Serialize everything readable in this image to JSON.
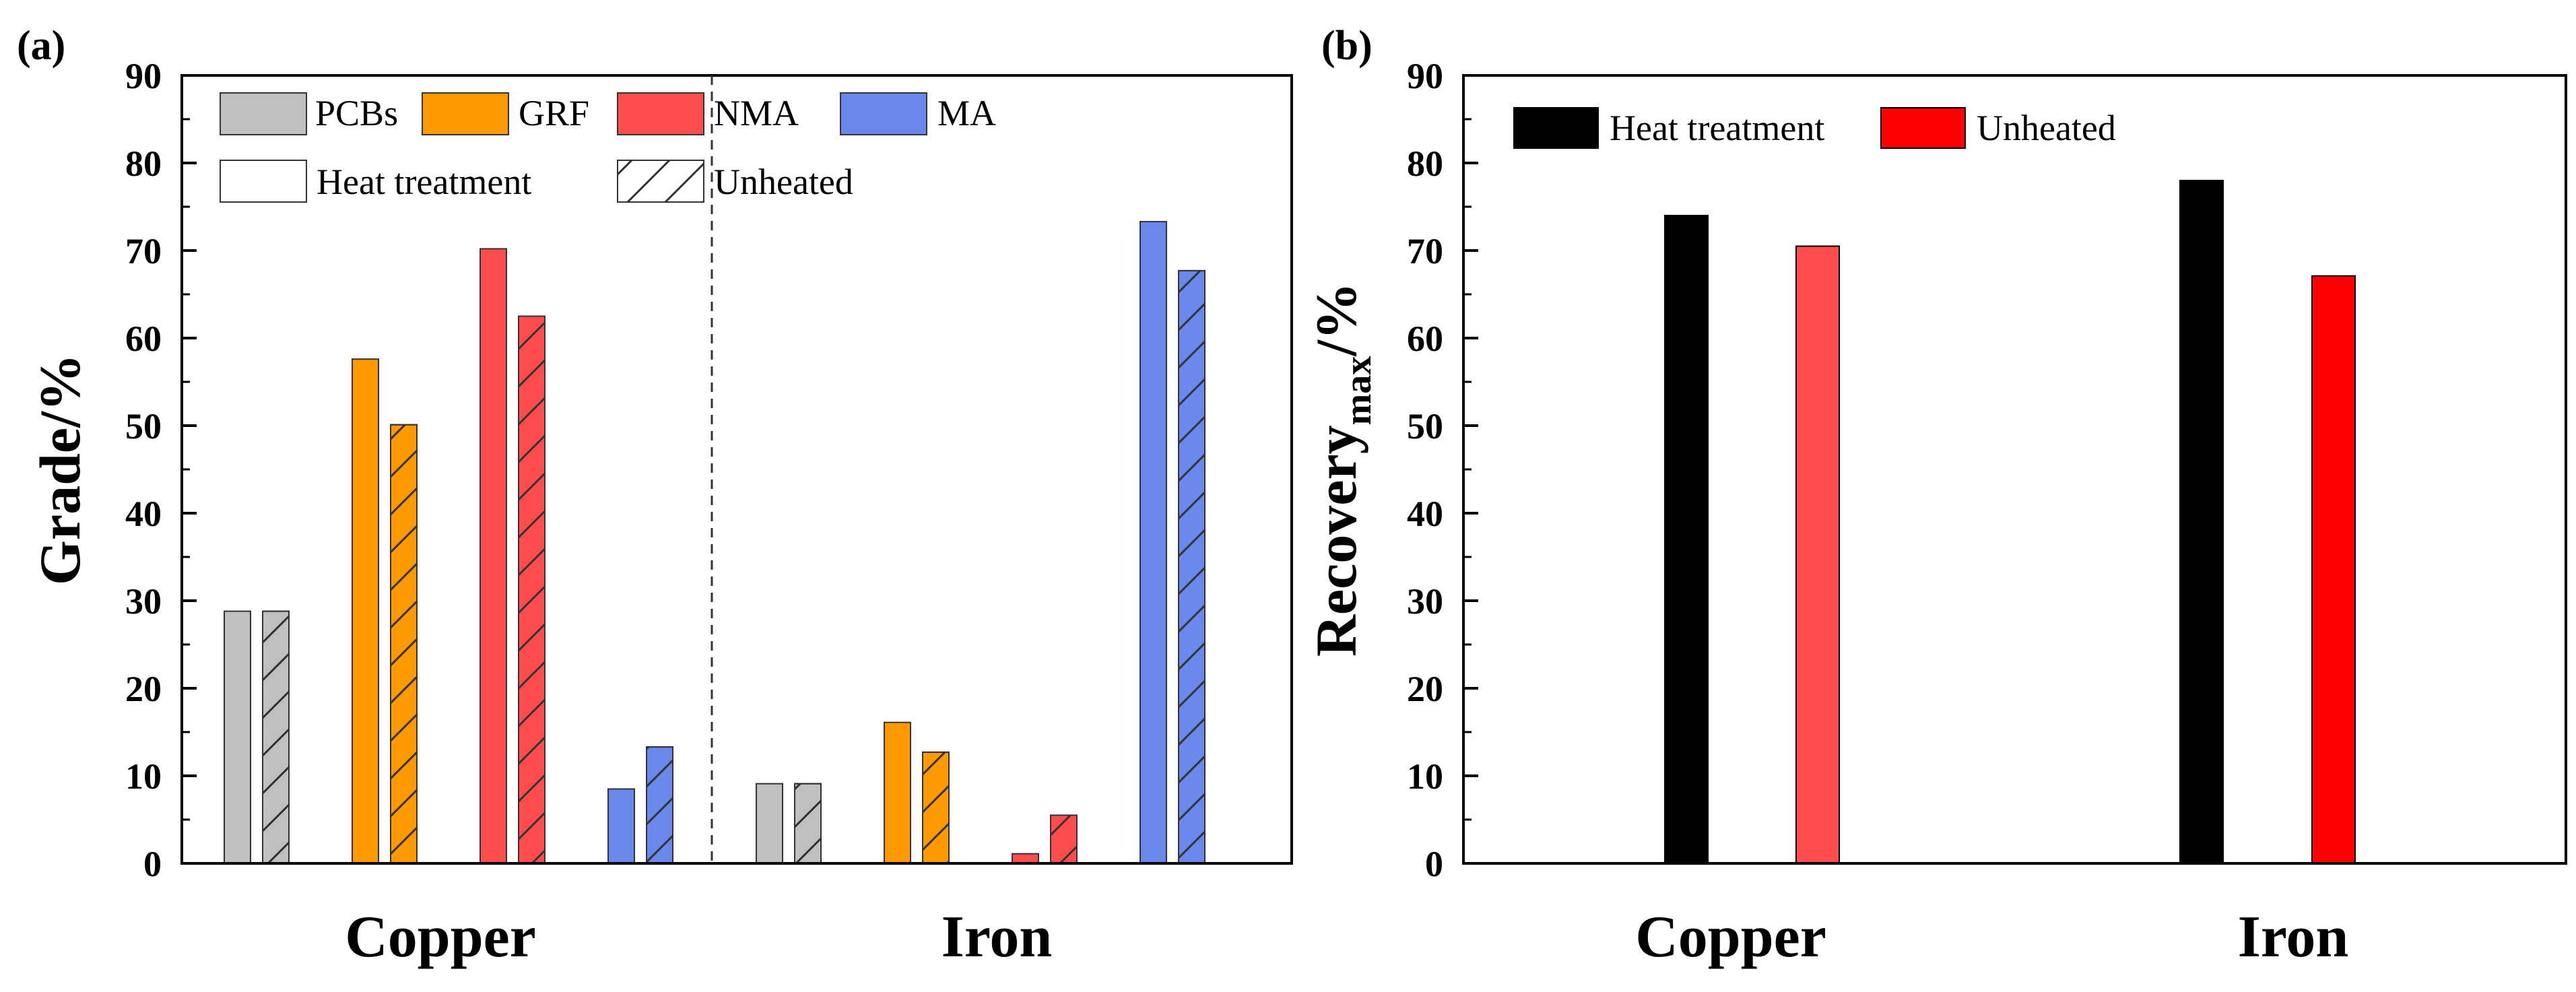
{
  "colors": {
    "pcbs": "#c0c0c0",
    "grf": "#ff9900",
    "nma": "#ff4d4d",
    "ma": "#6a87ec",
    "heat": "#000000",
    "unheated_a": "#ff4d4d",
    "unheated_b": "#ff0000"
  },
  "chart_data": [
    {
      "type": "bar",
      "panel_label": "(a)",
      "title": "",
      "xlabel": "",
      "ylabel": "Grade/%",
      "ylim": [
        0,
        90
      ],
      "yticks": [
        0,
        10,
        20,
        30,
        40,
        50,
        60,
        70,
        80,
        90
      ],
      "categories": [
        "Copper",
        "Iron"
      ],
      "legend_materials": [
        "PCBs",
        "GRF",
        "NMA",
        "MA"
      ],
      "legend_treatments": [
        "Heat treatment",
        "Unheated"
      ],
      "legend_position": "top",
      "series": [
        {
          "name": "PCBs",
          "treatment": "Heat treatment",
          "values": [
            28.8,
            9.1
          ]
        },
        {
          "name": "PCBs",
          "treatment": "Unheated",
          "values": [
            28.8,
            9.1
          ]
        },
        {
          "name": "GRF",
          "treatment": "Heat treatment",
          "values": [
            57.6,
            16.1
          ]
        },
        {
          "name": "GRF",
          "treatment": "Unheated",
          "values": [
            50.1,
            12.7
          ]
        },
        {
          "name": "NMA",
          "treatment": "Heat treatment",
          "values": [
            70.2,
            1.1
          ]
        },
        {
          "name": "NMA",
          "treatment": "Unheated",
          "values": [
            62.5,
            5.5
          ]
        },
        {
          "name": "MA",
          "treatment": "Heat treatment",
          "values": [
            8.5,
            73.3
          ]
        },
        {
          "name": "MA",
          "treatment": "Unheated",
          "values": [
            13.3,
            67.7
          ]
        }
      ]
    },
    {
      "type": "bar",
      "panel_label": "(b)",
      "title": "",
      "xlabel": "",
      "ylabel": "Recovery",
      "ylabel_subscript": "max",
      "ylabel_suffix": "/%",
      "ylim": [
        0,
        90
      ],
      "yticks": [
        0,
        10,
        20,
        30,
        40,
        50,
        60,
        70,
        80,
        90
      ],
      "categories": [
        "Copper",
        "Iron"
      ],
      "legend_position": "top-left",
      "series": [
        {
          "name": "Heat treatment",
          "values": [
            74.0,
            78.0
          ]
        },
        {
          "name": "Unheated",
          "values": [
            70.5,
            67.1
          ]
        }
      ]
    }
  ]
}
